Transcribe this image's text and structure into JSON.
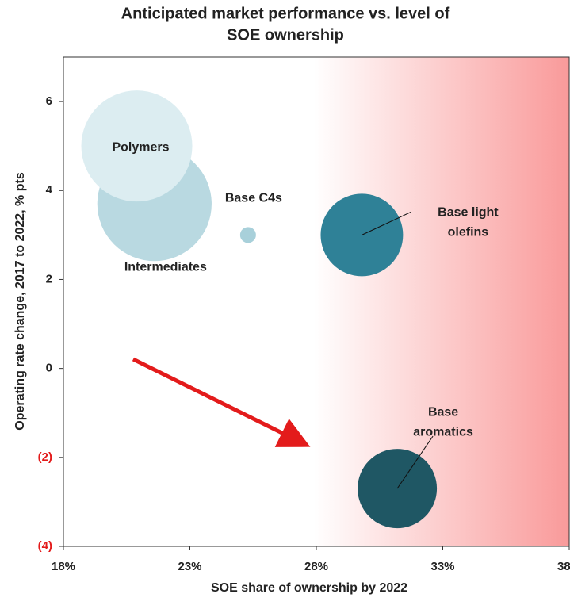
{
  "chart_data": {
    "type": "bubble",
    "title": [
      "Anticipated market performance vs. level of",
      "SOE ownership"
    ],
    "x_label": "SOE share of ownership by 2022",
    "y_label": "Operating rate change, 2017 to 2022, % pts",
    "xlim": [
      18,
      38
    ],
    "xticks": [
      {
        "value": 18,
        "label": "18%"
      },
      {
        "value": 23,
        "label": "23%"
      },
      {
        "value": 28,
        "label": "28%"
      },
      {
        "value": 33,
        "label": "33%"
      },
      {
        "value": 38,
        "label": "38%"
      }
    ],
    "ylim": [
      -4,
      7
    ],
    "yticks": [
      {
        "value": -4,
        "label": "(4)",
        "color": "#e31b1b"
      },
      {
        "value": -2,
        "label": "(2)",
        "color": "#e31b1b"
      },
      0,
      2,
      4,
      6
    ],
    "series": [
      {
        "names": [
          [
            "Intermediates"
          ],
          [
            "Polymers"
          ],
          [
            "Base C4s"
          ],
          [
            "Base light",
            "olefins"
          ],
          [
            "Base",
            "aromatics"
          ]
        ],
        "colors": [
          "#b9d9e1",
          "#dcedf1",
          "#a8d0da",
          "#2f8197",
          "#1f5764"
        ],
        "x": [
          21.6,
          20.9,
          25.3,
          29.8,
          31.2
        ],
        "values": [
          3.7,
          5,
          3,
          3,
          -2.7
        ],
        "sizes": [
          52,
          49,
          1,
          27,
          25
        ]
      }
    ]
  }
}
